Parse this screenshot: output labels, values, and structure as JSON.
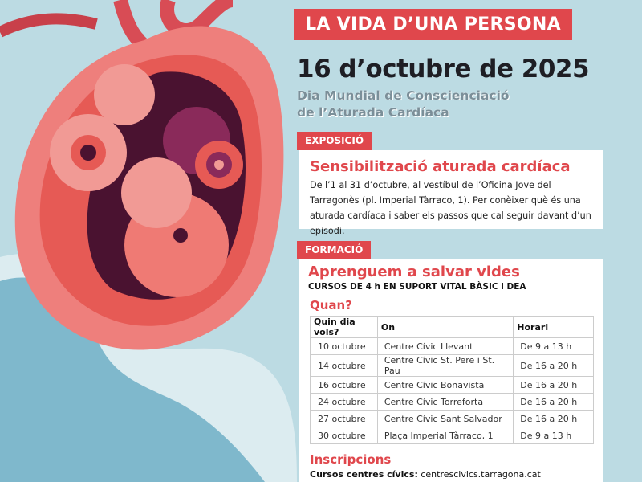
{
  "header": {
    "title": "LA VIDA D’UNA PERSONA",
    "date": "16 d’octubre de 2025",
    "subtitle_line1": "Dia Mundial de Conscienciació",
    "subtitle_line2": "de l’Aturada Cardíaca"
  },
  "exposicio": {
    "tab": "EXPOSICIÓ",
    "title": "Sensibilització aturada cardíaca",
    "body": "De l’1 al 31 d’octubre, al vestíbul de l’Oficina Jove del Tarragonès (pl. Imperial Tàrraco, 1). Per conèixer què és una aturada cardíaca i saber els passos que cal seguir davant d’un episodi."
  },
  "formacio": {
    "tab": "FORMACIÓ",
    "title": "Aprenguem a salvar vides",
    "subtitle": "CURSOS DE 4 h EN SUPORT VITAL BÀSIC i DEA",
    "when": "Quan?",
    "table": {
      "headers": [
        "Quin dia vols?",
        "On",
        "Horari"
      ],
      "rows": [
        [
          "10 octubre",
          "Centre Cívic Llevant",
          "De 9 a 13 h"
        ],
        [
          "14 octubre",
          "Centre Cívic St. Pere i St. Pau",
          "De 16 a 20 h"
        ],
        [
          "16 octubre",
          "Centre Cívic Bonavista",
          "De 16 a 20 h"
        ],
        [
          "24 octubre",
          "Centre Cívic Torreforta",
          "De 16 a 20 h"
        ],
        [
          "27 octubre",
          "Centre Cívic Sant Salvador",
          "De 16 a 20 h"
        ],
        [
          "30 octubre",
          "Plaça Imperial Tàrraco, 1",
          "De 9 a 13 h"
        ]
      ]
    },
    "inscripcions": "Inscripcions",
    "courses_label": "Cursos centres cívics:",
    "courses_link": "centrescivics.tarragona.cat"
  },
  "colors": {
    "accent": "#e0474c",
    "background": "#bcdbe3",
    "wave": "#7fb8cc"
  }
}
